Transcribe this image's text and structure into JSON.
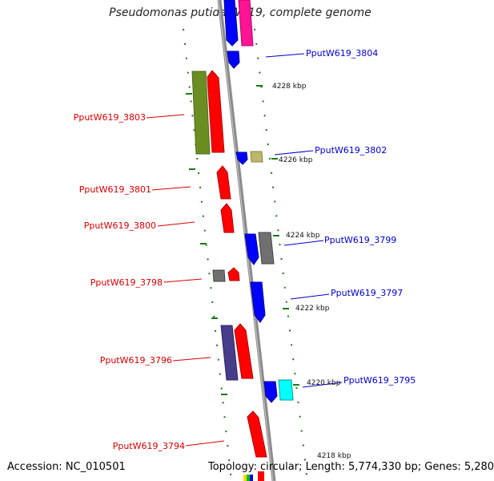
{
  "title": "Pseudomonas putida W619, complete genome",
  "accession": "Accession: NC_010501",
  "topology": "Topology: circular; Length: 5,774,330 bp; Genes: 5,280",
  "colors": {
    "forward_label": "#d40000",
    "reverse_label": "#0000cc",
    "backbone": "#8a8a8a",
    "tick": "#1a7a1a"
  },
  "kbp_labels": [
    "4228 kbp",
    "4226 kbp",
    "4224 kbp",
    "4222 kbp",
    "4220 kbp",
    "4218 kbp"
  ],
  "left_labels": [
    "PputW619_3803",
    "PputW619_3801",
    "PputW619_3800",
    "PputW619_3798",
    "PputW619_3796",
    "PputW619_3794"
  ],
  "right_labels": [
    "PputW619_3804",
    "PputW619_3802",
    "PputW619_3799",
    "PputW619_3797",
    "PputW619_3795"
  ]
}
